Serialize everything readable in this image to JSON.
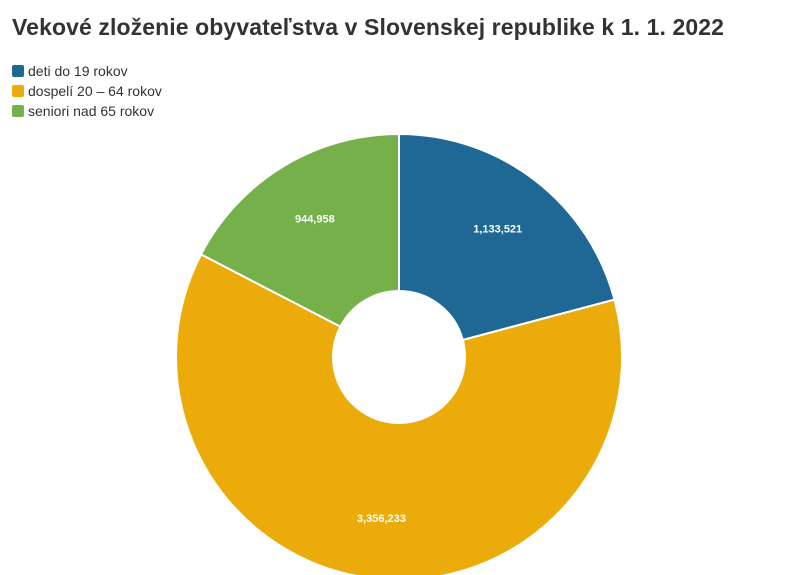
{
  "chart_data": {
    "type": "pie",
    "donut": true,
    "title": "Vekové zloženie obyvateľstva v Slovenskej republike k 1. 1. 2022",
    "legend_placement": "top-left",
    "slices": [
      {
        "label": "deti do 19 rokov",
        "value": 1133521,
        "value_label": "1,133,521",
        "color": "#1f6895"
      },
      {
        "label": "dospelí 20 – 64 rokov",
        "value": 3356233,
        "value_label": "3,356,233",
        "color": "#ebab0b"
      },
      {
        "label": "seniori nad 65 rokov",
        "value": 944958,
        "value_label": "944,958",
        "color": "#76b04a"
      }
    ]
  }
}
